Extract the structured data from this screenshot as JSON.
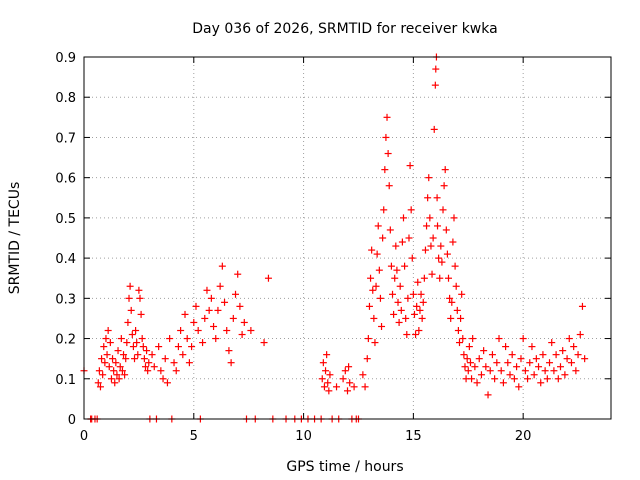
{
  "chart_data": {
    "type": "scatter",
    "title": "Day 036 of 2026, SRMTID for receiver kwka",
    "xlabel": "GPS time / hours",
    "ylabel": "SRMTID / TECUs",
    "xlim": [
      0,
      24
    ],
    "ylim": [
      0,
      0.9
    ],
    "xticks": [
      0,
      5,
      10,
      15,
      20
    ],
    "yticks": [
      0,
      0.1,
      0.2,
      0.3,
      0.4,
      0.5,
      0.6,
      0.7,
      0.8,
      0.9
    ],
    "xtick_labels": [
      "0",
      "5",
      "10",
      "15",
      "20"
    ],
    "ytick_labels": [
      "0",
      "0.1",
      "0.2",
      "0.3",
      "0.4",
      "0.5",
      "0.6",
      "0.7",
      "0.8",
      "0.9"
    ],
    "grid": true,
    "marker": "+",
    "colors": {
      "marker": "#ff0000",
      "grid": "#a0a0a0",
      "axis": "#000000"
    },
    "series": [
      {
        "name": "SRMTID",
        "x": [
          0.0,
          0.3,
          0.35,
          0.5,
          0.6,
          0.65,
          0.7,
          0.75,
          0.8,
          0.85,
          0.9,
          0.95,
          1.0,
          1.05,
          1.1,
          1.15,
          1.2,
          1.25,
          1.3,
          1.35,
          1.4,
          1.45,
          1.5,
          1.55,
          1.6,
          1.65,
          1.7,
          1.75,
          1.8,
          1.85,
          1.9,
          1.95,
          2.0,
          2.05,
          2.1,
          2.15,
          2.2,
          2.25,
          2.3,
          2.35,
          2.4,
          2.45,
          2.5,
          2.55,
          2.6,
          2.65,
          2.7,
          2.75,
          2.8,
          2.85,
          2.9,
          2.95,
          3.0,
          3.1,
          3.2,
          3.3,
          3.4,
          3.5,
          3.6,
          3.7,
          3.8,
          3.9,
          4.0,
          4.1,
          4.2,
          4.3,
          4.4,
          4.5,
          4.6,
          4.7,
          4.8,
          4.9,
          5.0,
          5.1,
          5.2,
          5.3,
          5.4,
          5.5,
          5.6,
          5.7,
          5.8,
          5.9,
          6.0,
          6.1,
          6.2,
          6.3,
          6.4,
          6.5,
          6.6,
          6.7,
          6.8,
          6.9,
          7.0,
          7.1,
          7.2,
          7.3,
          7.4,
          7.6,
          7.8,
          8.2,
          8.4,
          8.6,
          9.2,
          9.6,
          9.9,
          10.2,
          10.5,
          10.8,
          10.85,
          10.9,
          10.95,
          11.0,
          11.05,
          11.1,
          11.15,
          11.2,
          11.3,
          11.5,
          11.6,
          11.8,
          11.9,
          12.0,
          12.05,
          12.1,
          12.2,
          12.3,
          12.4,
          12.5,
          12.7,
          12.8,
          12.9,
          12.95,
          13.0,
          13.05,
          13.1,
          13.15,
          13.2,
          13.25,
          13.3,
          13.35,
          13.4,
          13.45,
          13.5,
          13.55,
          13.6,
          13.65,
          13.7,
          13.75,
          13.8,
          13.85,
          13.9,
          13.95,
          14.0,
          14.05,
          14.1,
          14.15,
          14.2,
          14.25,
          14.3,
          14.35,
          14.4,
          14.45,
          14.5,
          14.55,
          14.6,
          14.65,
          14.7,
          14.75,
          14.8,
          14.85,
          14.9,
          14.95,
          15.0,
          15.05,
          15.1,
          15.15,
          15.2,
          15.25,
          15.3,
          15.35,
          15.4,
          15.45,
          15.5,
          15.55,
          15.6,
          15.65,
          15.7,
          15.75,
          15.8,
          15.85,
          15.9,
          15.95,
          16.0,
          16.02,
          16.05,
          16.08,
          16.1,
          16.15,
          16.2,
          16.25,
          16.3,
          16.35,
          16.4,
          16.45,
          16.5,
          16.55,
          16.6,
          16.65,
          16.7,
          16.75,
          16.8,
          16.85,
          16.9,
          16.95,
          17.0,
          17.05,
          17.1,
          17.15,
          17.2,
          17.25,
          17.3,
          17.35,
          17.4,
          17.45,
          17.5,
          17.55,
          17.6,
          17.65,
          17.7,
          17.8,
          17.9,
          18.0,
          18.1,
          18.2,
          18.3,
          18.4,
          18.5,
          18.6,
          18.7,
          18.8,
          18.9,
          19.0,
          19.1,
          19.2,
          19.3,
          19.4,
          19.5,
          19.6,
          19.7,
          19.8,
          19.9,
          20.0,
          20.1,
          20.2,
          20.3,
          20.4,
          20.5,
          20.6,
          20.7,
          20.8,
          20.9,
          21.0,
          21.1,
          21.2,
          21.3,
          21.4,
          21.5,
          21.6,
          21.7,
          21.8,
          21.9,
          22.0,
          22.1,
          22.2,
          22.3,
          22.4,
          22.5,
          22.6,
          22.7,
          22.8
        ],
        "y": [
          0.12,
          0.0,
          0.0,
          0.0,
          0.0,
          0.09,
          0.12,
          0.08,
          0.15,
          0.11,
          0.18,
          0.14,
          0.2,
          0.16,
          0.22,
          0.13,
          0.19,
          0.1,
          0.15,
          0.12,
          0.09,
          0.14,
          0.11,
          0.17,
          0.1,
          0.13,
          0.2,
          0.12,
          0.16,
          0.11,
          0.15,
          0.19,
          0.24,
          0.3,
          0.33,
          0.27,
          0.21,
          0.18,
          0.15,
          0.22,
          0.19,
          0.16,
          0.32,
          0.3,
          0.26,
          0.2,
          0.18,
          0.15,
          0.13,
          0.17,
          0.12,
          0.14,
          0.0,
          0.16,
          0.13,
          0.0,
          0.18,
          0.12,
          0.1,
          0.15,
          0.09,
          0.2,
          0.0,
          0.14,
          0.12,
          0.18,
          0.22,
          0.16,
          0.26,
          0.2,
          0.14,
          0.18,
          0.24,
          0.28,
          0.22,
          0.0,
          0.19,
          0.25,
          0.32,
          0.27,
          0.3,
          0.23,
          0.2,
          0.27,
          0.33,
          0.38,
          0.29,
          0.22,
          0.17,
          0.14,
          0.25,
          0.31,
          0.36,
          0.28,
          0.21,
          0.24,
          0.0,
          0.22,
          0.0,
          0.19,
          0.35,
          0.0,
          0.0,
          0.0,
          0.0,
          0.0,
          0.0,
          0.0,
          0.1,
          0.14,
          0.08,
          0.12,
          0.16,
          0.09,
          0.07,
          0.11,
          0.0,
          0.08,
          0.0,
          0.1,
          0.12,
          0.07,
          0.13,
          0.09,
          0.0,
          0.08,
          0.0,
          0.0,
          0.11,
          0.08,
          0.15,
          0.2,
          0.28,
          0.35,
          0.42,
          0.32,
          0.25,
          0.19,
          0.33,
          0.41,
          0.48,
          0.37,
          0.3,
          0.23,
          0.45,
          0.52,
          0.62,
          0.7,
          0.75,
          0.66,
          0.58,
          0.47,
          0.38,
          0.31,
          0.26,
          0.35,
          0.43,
          0.37,
          0.29,
          0.24,
          0.33,
          0.27,
          0.44,
          0.5,
          0.38,
          0.25,
          0.21,
          0.3,
          0.45,
          0.63,
          0.52,
          0.4,
          0.31,
          0.26,
          0.21,
          0.28,
          0.34,
          0.22,
          0.27,
          0.31,
          0.25,
          0.29,
          0.35,
          0.42,
          0.48,
          0.55,
          0.6,
          0.5,
          0.43,
          0.36,
          0.45,
          0.72,
          0.83,
          0.87,
          0.9,
          0.55,
          0.48,
          0.4,
          0.35,
          0.43,
          0.39,
          0.52,
          0.58,
          0.62,
          0.47,
          0.41,
          0.35,
          0.3,
          0.25,
          0.29,
          0.44,
          0.5,
          0.38,
          0.33,
          0.27,
          0.22,
          0.19,
          0.25,
          0.31,
          0.2,
          0.16,
          0.13,
          0.1,
          0.15,
          0.12,
          0.18,
          0.14,
          0.1,
          0.2,
          0.13,
          0.09,
          0.15,
          0.11,
          0.17,
          0.13,
          0.06,
          0.12,
          0.16,
          0.1,
          0.14,
          0.2,
          0.12,
          0.09,
          0.18,
          0.14,
          0.11,
          0.16,
          0.1,
          0.13,
          0.08,
          0.15,
          0.2,
          0.12,
          0.1,
          0.14,
          0.18,
          0.11,
          0.15,
          0.13,
          0.09,
          0.16,
          0.12,
          0.1,
          0.14,
          0.19,
          0.12,
          0.16,
          0.1,
          0.13,
          0.17,
          0.11,
          0.15,
          0.2,
          0.14,
          0.18,
          0.12,
          0.16,
          0.21,
          0.28,
          0.15
        ]
      }
    ]
  }
}
